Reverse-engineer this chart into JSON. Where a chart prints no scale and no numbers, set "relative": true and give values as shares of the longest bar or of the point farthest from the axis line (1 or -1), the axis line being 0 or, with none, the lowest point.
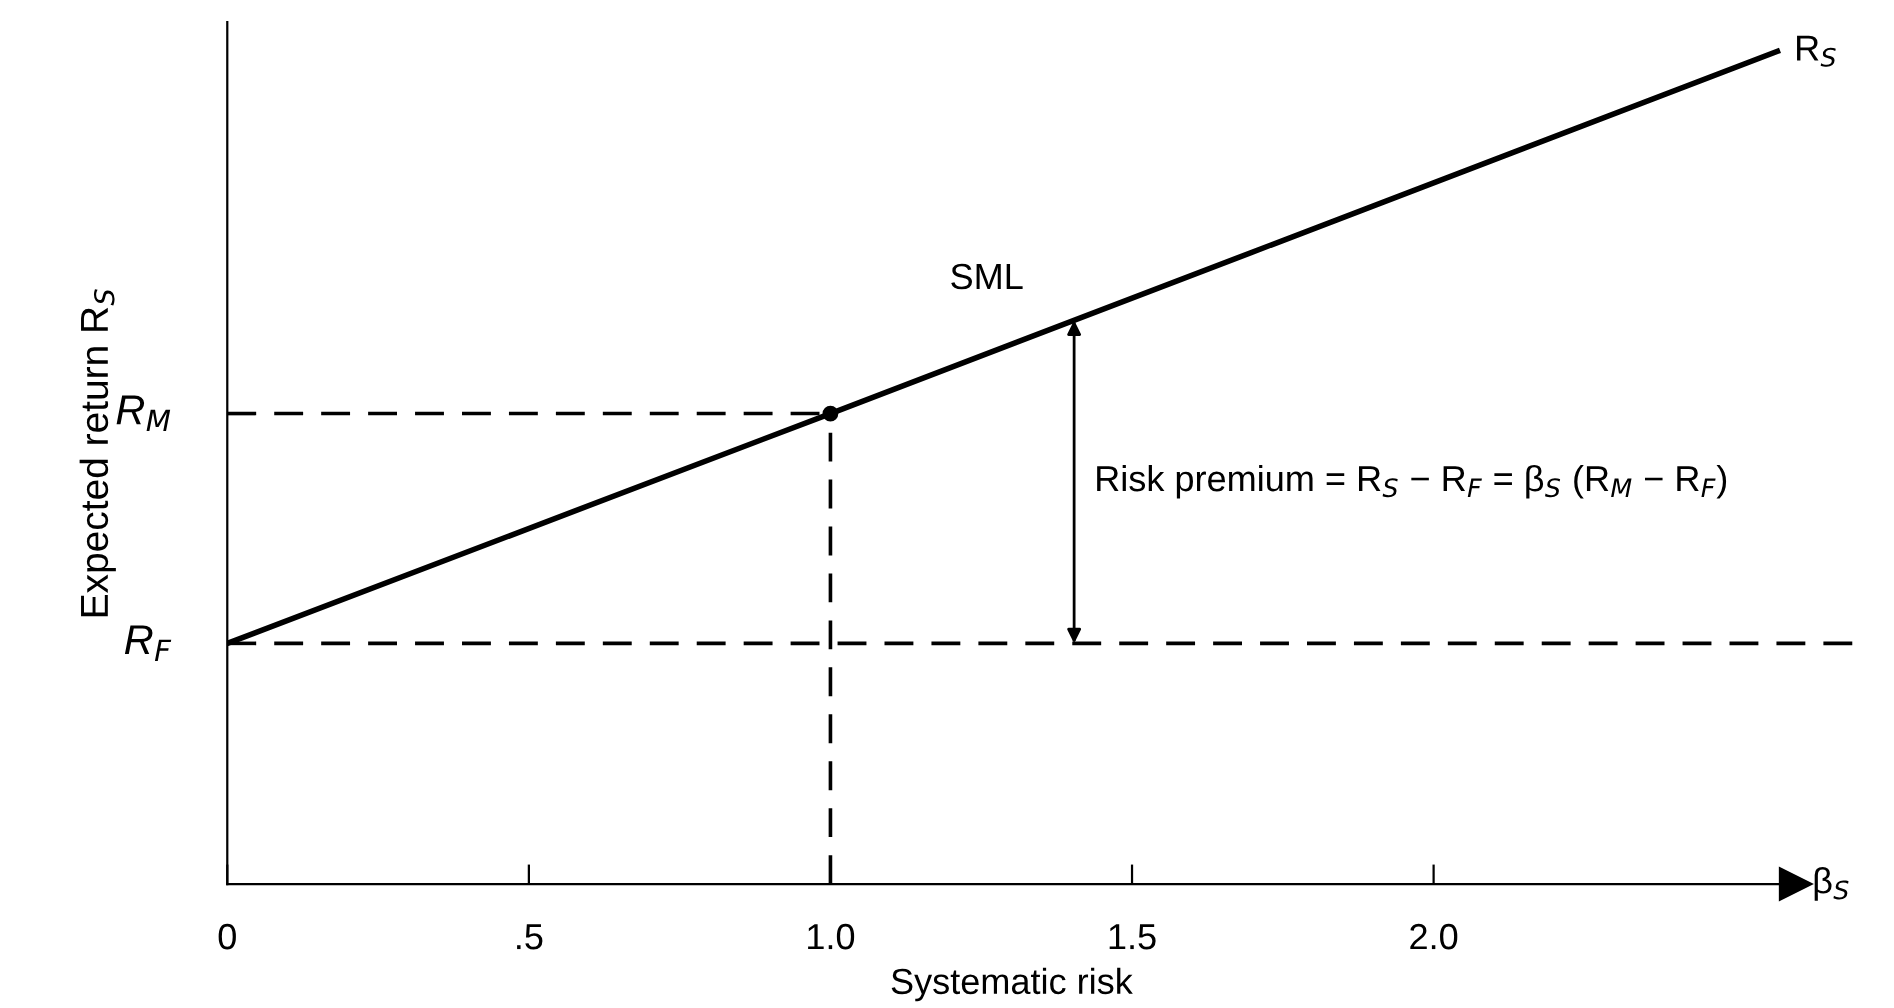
{
  "chart_data": {
    "type": "line",
    "relative": true,
    "xlabel": "Systematic risk",
    "ylabel": "Expected return R$_{S}$",
    "xlim": [
      0,
      2.6
    ],
    "xticks": [
      0,
      {
        "value": 0.5,
        "label": ".5"
      },
      {
        "value": 1.0,
        "label": "1.0"
      },
      {
        "value": 1.5,
        "label": "1.5"
      },
      {
        "value": 2.0,
        "label": "2.0"
      }
    ],
    "series": [
      {
        "color": "#000000",
        "x": [
          0,
          1.0,
          2.57
        ],
        "values": [
          0.289,
          0.565,
          1
        ]
      },
      {
        "type": "scatter",
        "color": "#000000",
        "x": [
          1.0
        ],
        "values": [
          0.565
        ]
      }
    ],
    "ref_lines": [
      {
        "axis": "y",
        "value": 0.289,
        "label": "R$_{F}$",
        "line_style": "dashed"
      },
      {
        "axis": "y",
        "value": 0.565,
        "label": "R$_{M}$",
        "line_style": "dashed"
      },
      {
        "axis": "x",
        "value": 1.0,
        "line_style": "dashed"
      }
    ],
    "annotations": [
      "SML",
      "Risk premium = R$_{S}$ − R$_{F}$ = β$_{S}$ (R$_{M}$ − R$_{F}$)",
      {
        "text": "R$_{S}$",
        "x": 2.57,
        "y": 1
      },
      {
        "text": "β$_{S}$",
        "x": 2.6,
        "y": 0
      }
    ],
    "grid": false,
    "legend": false
  }
}
